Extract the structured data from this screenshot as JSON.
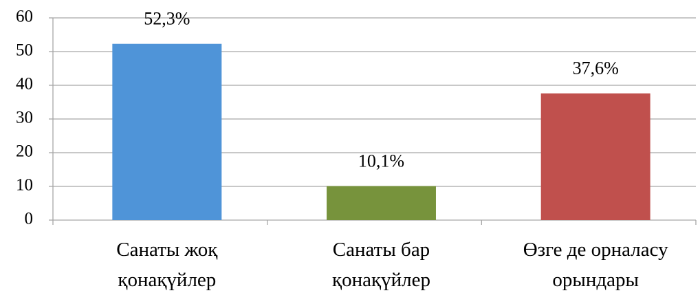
{
  "chart_data": {
    "type": "bar",
    "categories": [
      "Санаты жоқ\nқонақүйлер",
      "Санаты бар\nқонақүйлер",
      "Өзге де орналасу\nорындары"
    ],
    "values": [
      52.3,
      10.1,
      37.6
    ],
    "value_labels": [
      "52,3%",
      "10,1%",
      "37,6%"
    ],
    "colors": [
      "#4f94d8",
      "#77933c",
      "#c0504d"
    ],
    "ylim": [
      0,
      60
    ],
    "yticks": [
      0,
      10,
      20,
      30,
      40,
      50,
      60
    ],
    "grid": true
  }
}
